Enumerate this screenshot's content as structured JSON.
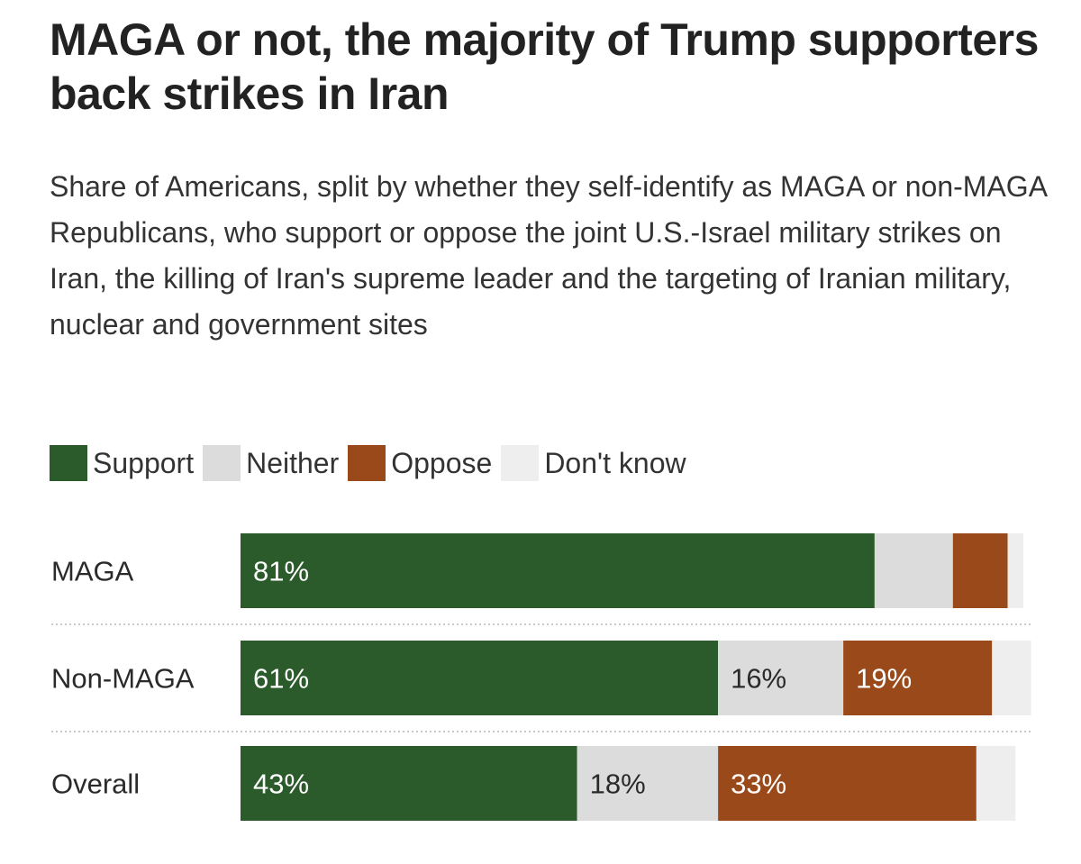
{
  "title": "MAGA or not, the majority of Trump supporters back strikes in Iran",
  "subtitle": "Share of Americans, split by whether they self-identify as MAGA or non-MAGA Republicans, who support or oppose the joint U.S.-Israel military strikes on Iran, the killing of Iran's supreme leader and the targeting of Iranian military, nuclear and government sites",
  "legend": [
    {
      "label": "Support",
      "color": "#2b5a2b"
    },
    {
      "label": "Neither",
      "color": "#dcdcdc"
    },
    {
      "label": "Oppose",
      "color": "#9a4a1a"
    },
    {
      "label": "Don't know",
      "color": "#eeeeee"
    }
  ],
  "chart_data": {
    "type": "bar",
    "orientation": "horizontal",
    "stacked": true,
    "unit": "%",
    "title": "MAGA or not, the majority of Trump supporters back strikes in Iran",
    "categories": [
      "MAGA",
      "Non-MAGA",
      "Overall"
    ],
    "series": [
      {
        "name": "Support",
        "color": "#2b5a2b",
        "values": [
          81,
          61,
          43
        ],
        "labels": [
          "81%",
          "61%",
          "43%"
        ]
      },
      {
        "name": "Neither",
        "color": "#dcdcdc",
        "values": [
          10,
          16,
          18
        ],
        "labels": [
          "",
          "16%",
          "18%"
        ]
      },
      {
        "name": "Oppose",
        "color": "#9a4a1a",
        "values": [
          7,
          19,
          33
        ],
        "labels": [
          "",
          "19%",
          "33%"
        ]
      },
      {
        "name": "Don't know",
        "color": "#eeeeee",
        "values": [
          2,
          5,
          5
        ],
        "labels": [
          "",
          "",
          ""
        ]
      }
    ],
    "xlim": [
      0,
      100
    ],
    "grid": false,
    "legend_position": "top-left"
  }
}
